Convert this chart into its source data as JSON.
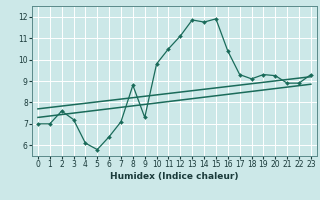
{
  "title": "",
  "xlabel": "Humidex (Indice chaleur)",
  "bg_color": "#cce8e8",
  "grid_color": "#ffffff",
  "line_color": "#1a6b5a",
  "xlim": [
    -0.5,
    23.5
  ],
  "ylim": [
    5.5,
    12.5
  ],
  "xticks": [
    0,
    1,
    2,
    3,
    4,
    5,
    6,
    7,
    8,
    9,
    10,
    11,
    12,
    13,
    14,
    15,
    16,
    17,
    18,
    19,
    20,
    21,
    22,
    23
  ],
  "yticks": [
    6,
    7,
    8,
    9,
    10,
    11,
    12
  ],
  "line1_x": [
    0,
    1,
    2,
    3,
    4,
    5,
    6,
    7,
    8,
    9,
    10,
    11,
    12,
    13,
    14,
    15,
    16,
    17,
    18,
    19,
    20,
    21,
    22,
    23
  ],
  "line1_y": [
    7.0,
    7.0,
    7.6,
    7.2,
    6.1,
    5.8,
    6.4,
    7.1,
    8.8,
    7.3,
    9.8,
    10.5,
    11.1,
    11.85,
    11.75,
    11.9,
    10.4,
    9.3,
    9.1,
    9.3,
    9.25,
    8.9,
    8.9,
    9.3
  ],
  "line2_x": [
    0,
    23
  ],
  "line2_y": [
    7.7,
    9.2
  ],
  "line3_x": [
    0,
    23
  ],
  "line3_y": [
    7.3,
    8.85
  ]
}
